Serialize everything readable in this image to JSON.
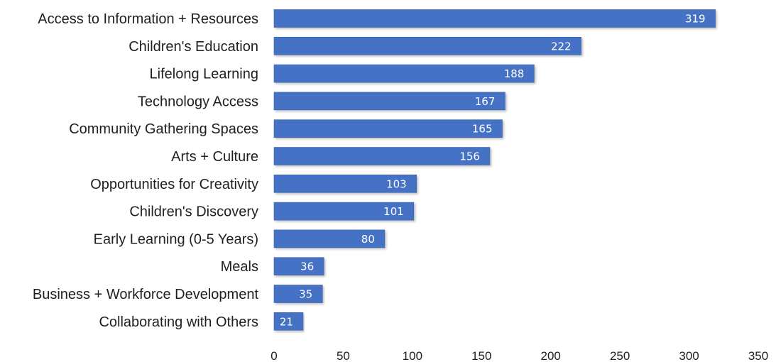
{
  "chart_data": {
    "type": "bar",
    "orientation": "horizontal",
    "title": "",
    "xlabel": "",
    "ylabel": "",
    "categories": [
      "Access to Information + Resources",
      "Children's Education",
      "Lifelong Learning",
      "Technology Access",
      "Community Gathering Spaces",
      "Arts + Culture",
      "Opportunities for Creativity",
      "Children's Discovery",
      "Early Learning (0-5 Years)",
      "Meals",
      "Business + Workforce Development",
      "Collaborating with Others"
    ],
    "values": [
      319,
      222,
      188,
      167,
      165,
      156,
      103,
      101,
      80,
      36,
      35,
      21
    ],
    "xlim": [
      0,
      350
    ],
    "xticks": [
      0,
      50,
      100,
      150,
      200,
      250,
      300,
      350
    ],
    "grid": false,
    "legend": "none",
    "data_labels": "inside-end",
    "colors": {
      "bar": "#4472c4",
      "bar_edge": "#3a62ad",
      "label_text": "#ffffff",
      "axis_text": "#1f1f1f"
    }
  }
}
